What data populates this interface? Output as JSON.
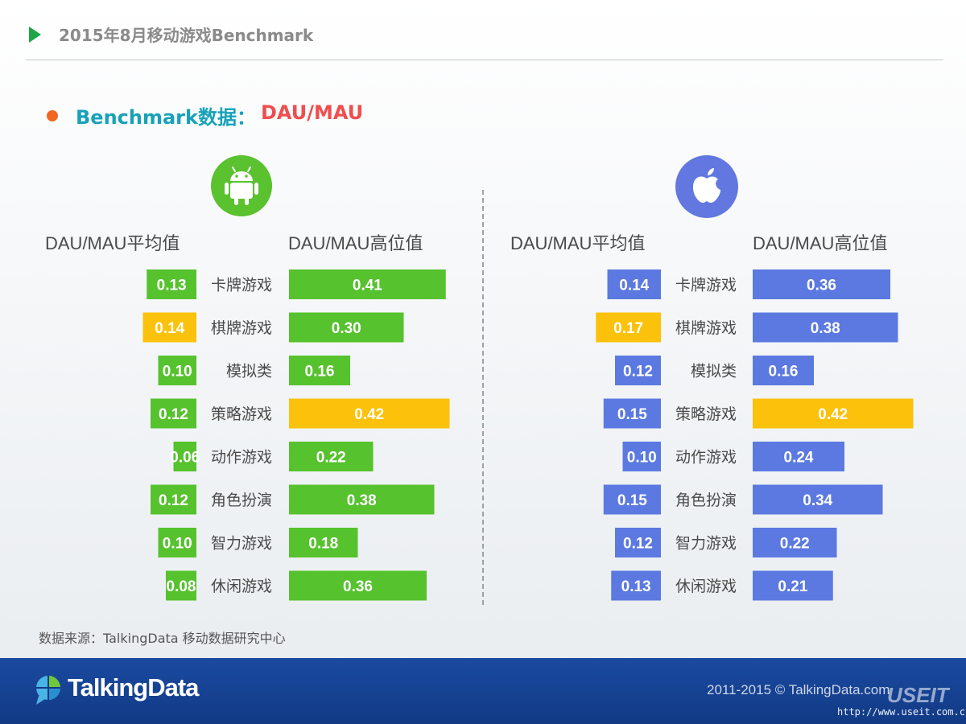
{
  "header": {
    "title": "2015年8月移动游戏Benchmark"
  },
  "subtitle": {
    "prefix": "Benchmark数据：",
    "metric": "DAU/MAU"
  },
  "panels": [
    {
      "platform_icon": "android-icon",
      "avg_label": "DAU/MAU平均值",
      "high_label": "DAU/MAU高位值"
    },
    {
      "platform_icon": "apple-icon",
      "avg_label": "DAU/MAU平均值",
      "high_label": "DAU/MAU高位值"
    }
  ],
  "colors": {
    "android": "#56c22e",
    "ios": "#5b79e0",
    "highlight": "#fcc10a",
    "label_text": "#ffffff",
    "category_text": "#4a4a4a"
  },
  "chart_data": [
    {
      "type": "bar",
      "title": "Android",
      "categories": [
        "卡牌游戏",
        "棋牌游戏",
        "模拟类",
        "策略游戏",
        "动作游戏",
        "角色扮演",
        "智力游戏",
        "休闲游戏"
      ],
      "series": [
        {
          "name": "DAU/MAU平均值",
          "values": [
            0.13,
            0.14,
            0.1,
            0.12,
            0.06,
            0.12,
            0.1,
            0.08
          ],
          "highlight_index": 1
        },
        {
          "name": "DAU/MAU高位值",
          "values": [
            0.41,
            0.3,
            0.16,
            0.42,
            0.22,
            0.38,
            0.18,
            0.36
          ],
          "highlight_index": 3
        }
      ]
    },
    {
      "type": "bar",
      "title": "iOS",
      "categories": [
        "卡牌游戏",
        "棋牌游戏",
        "模拟类",
        "策略游戏",
        "动作游戏",
        "角色扮演",
        "智力游戏",
        "休闲游戏"
      ],
      "series": [
        {
          "name": "DAU/MAU平均值",
          "values": [
            0.14,
            0.17,
            0.12,
            0.15,
            0.1,
            0.15,
            0.12,
            0.13
          ],
          "highlight_index": 1
        },
        {
          "name": "DAU/MAU高位值",
          "values": [
            0.36,
            0.38,
            0.16,
            0.42,
            0.24,
            0.34,
            0.22,
            0.21
          ],
          "highlight_index": 3
        }
      ]
    }
  ],
  "source": "数据来源：TalkingData 移动数据研究中心",
  "footer": {
    "brand": "TalkingData",
    "copyright": "2011-2015 © TalkingData.com",
    "watermark": "USEIT",
    "watermark_url": "http://www.useit.com.cn"
  }
}
